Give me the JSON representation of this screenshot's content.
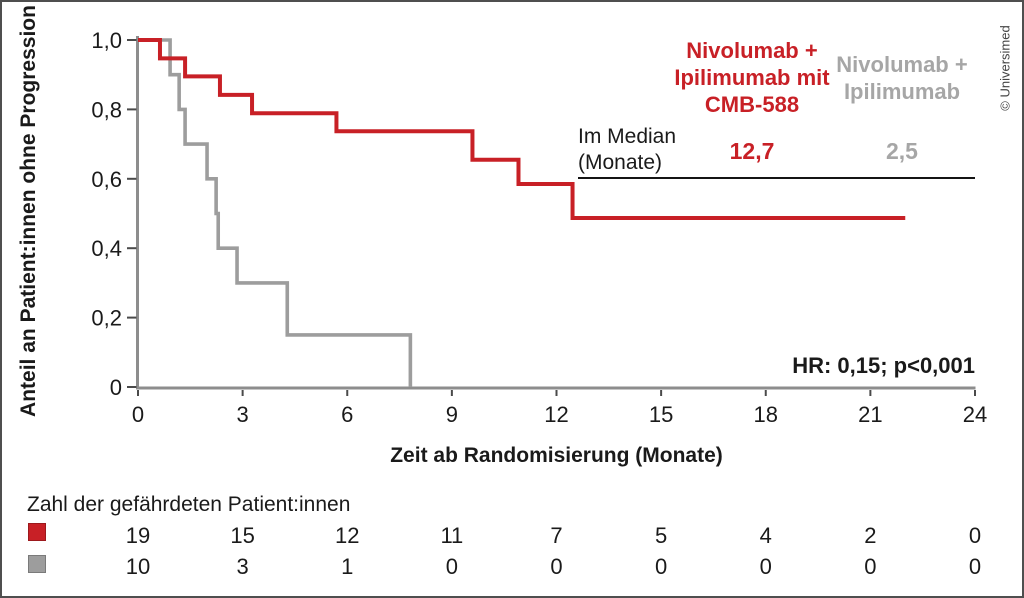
{
  "colors": {
    "red": "#c82026",
    "gray_curve": "#9d9d9d",
    "gray_text": "#a6a6a6",
    "ink": "#1a1a1a",
    "axis_line": "#8d8d8d",
    "tick": "#4a4a4a",
    "frame": "#4f4f4f",
    "copyright": "#444444"
  },
  "chart_data": {
    "type": "line",
    "subtype": "kaplan-meier-step",
    "title": "",
    "xlabel": "Zeit ab Randomisierung (Monate)",
    "ylabel": "Anteil an Patient:innen ohne Progression",
    "xlim": [
      0,
      24
    ],
    "ylim": [
      0,
      1.0
    ],
    "grid": false,
    "legend_position": "top-right",
    "annotation": "HR: 0,15; p<0,001",
    "x_ticks": [
      {
        "label": "0",
        "v": 0
      },
      {
        "label": "3",
        "v": 3
      },
      {
        "label": "6",
        "v": 6
      },
      {
        "label": "9",
        "v": 9
      },
      {
        "label": "12",
        "v": 12
      },
      {
        "label": "15",
        "v": 15
      },
      {
        "label": "18",
        "v": 18
      },
      {
        "label": "21",
        "v": 21
      },
      {
        "label": "24",
        "v": 24
      }
    ],
    "y_ticks": [
      {
        "label": "1,0",
        "v": 1.0
      },
      {
        "label": "0,8",
        "v": 0.8
      },
      {
        "label": "0,6",
        "v": 0.6
      },
      {
        "label": "0,4",
        "v": 0.4
      },
      {
        "label": "0,2",
        "v": 0.2
      },
      {
        "label": "0",
        "v": 0
      }
    ],
    "series": [
      {
        "name": "Nivolumab + Ipilimumab mit CMB-588",
        "color": "#c82026",
        "median_monate": "12,7",
        "steps": [
          [
            0,
            1.0
          ],
          [
            0.63,
            0.947
          ],
          [
            1.35,
            0.895
          ],
          [
            2.35,
            0.842
          ],
          [
            3.27,
            0.789
          ],
          [
            5.69,
            0.737
          ],
          [
            9.59,
            0.655
          ],
          [
            10.91,
            0.585
          ],
          [
            12.46,
            0.487
          ]
        ],
        "end_month": 22.0
      },
      {
        "name": "Nivolumab + Ipilimumab",
        "color": "#9d9d9d",
        "median_monate": "2,5",
        "steps": [
          [
            0,
            1.0
          ],
          [
            0.92,
            0.9
          ],
          [
            1.18,
            0.8
          ],
          [
            1.35,
            0.7
          ],
          [
            1.98,
            0.6
          ],
          [
            2.24,
            0.5
          ],
          [
            2.3,
            0.4
          ],
          [
            2.84,
            0.3
          ],
          [
            4.28,
            0.15
          ],
          [
            7.81,
            0
          ]
        ],
        "end_month": 7.81
      }
    ]
  },
  "legend": {
    "arm1_lines": [
      "Nivolumab +",
      "Ipilimumab mit",
      "CMB-588"
    ],
    "arm2_lines": [
      "Nivolumab +",
      "Ipilimumab"
    ],
    "median_label_lines": [
      "Im Median",
      "(Monate)"
    ],
    "arm1_median": "12,7",
    "arm2_median": "2,5"
  },
  "hr_text": "HR: 0,15; p<0,001",
  "risk_table": {
    "title": "Zahl der gefährdeten Patient:innen",
    "rows": [
      {
        "arm": "Nivolumab + Ipilimumab mit CMB-588",
        "color": "#c82026",
        "counts": [
          "19",
          "15",
          "12",
          "11",
          "7",
          "5",
          "4",
          "2",
          "0"
        ]
      },
      {
        "arm": "Nivolumab + Ipilimumab",
        "color": "#9d9d9d",
        "counts": [
          "10",
          "3",
          "1",
          "0",
          "0",
          "0",
          "0",
          "0",
          "0"
        ]
      }
    ]
  },
  "copyright": "© Universimed"
}
